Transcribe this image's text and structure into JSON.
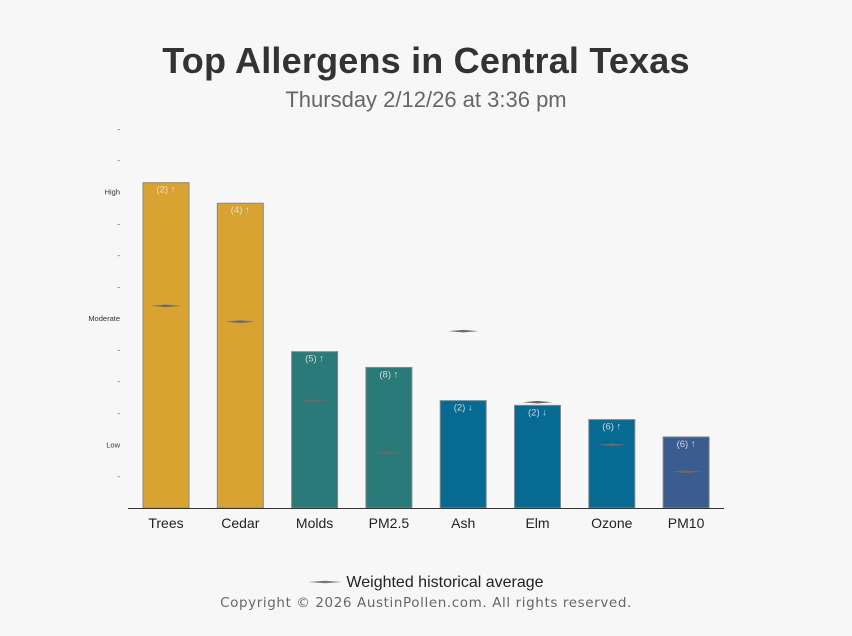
{
  "header": {
    "title": "Top Allergens in Central Texas",
    "subtitle": "Thursday 2/12/26 at 3:36 pm"
  },
  "legend": {
    "label": "Weighted historical average"
  },
  "footer": {
    "copyright": "Copyright © 2026 AustinPollen.com.  All rights reserved."
  },
  "chart_data": {
    "type": "bar",
    "title": "Top Allergens in Central Texas",
    "subtitle": "Thursday 2/12/26 at 3:36 pm",
    "xlabel": "",
    "ylabel": "",
    "ylim": [
      0,
      12
    ],
    "y_ticks": [
      {
        "value": 1,
        "label": "-"
      },
      {
        "value": 2,
        "label": "Low"
      },
      {
        "value": 3,
        "label": "-"
      },
      {
        "value": 4,
        "label": "-"
      },
      {
        "value": 5,
        "label": "-"
      },
      {
        "value": 6,
        "label": "Moderate"
      },
      {
        "value": 7,
        "label": "-"
      },
      {
        "value": 8,
        "label": "-"
      },
      {
        "value": 9,
        "label": "-"
      },
      {
        "value": 10,
        "label": "High"
      },
      {
        "value": 11,
        "label": "-"
      },
      {
        "value": 12,
        "label": "-"
      }
    ],
    "categories": [
      "Trees",
      "Cedar",
      "Molds",
      "PM2.5",
      "Ash",
      "Elm",
      "Ozone",
      "PM10"
    ],
    "values": [
      10.3,
      9.65,
      4.95,
      4.45,
      3.4,
      3.25,
      2.8,
      2.25
    ],
    "historical_average": [
      6.4,
      5.9,
      3.4,
      1.75,
      5.6,
      3.35,
      2.0,
      1.15
    ],
    "bar_labels": [
      "(2) ↑",
      "(4) ↑",
      "(5) ↑",
      "(8) ↑",
      "(2) ↓",
      "(2) ↓",
      "(6) ↑",
      "(6) ↑"
    ],
    "colors": [
      "#d8a331",
      "#d8a331",
      "#2a7a79",
      "#2a7a79",
      "#076a92",
      "#076a92",
      "#076a92",
      "#3a5c8f"
    ],
    "legend_position": "bottom",
    "grid": false
  }
}
